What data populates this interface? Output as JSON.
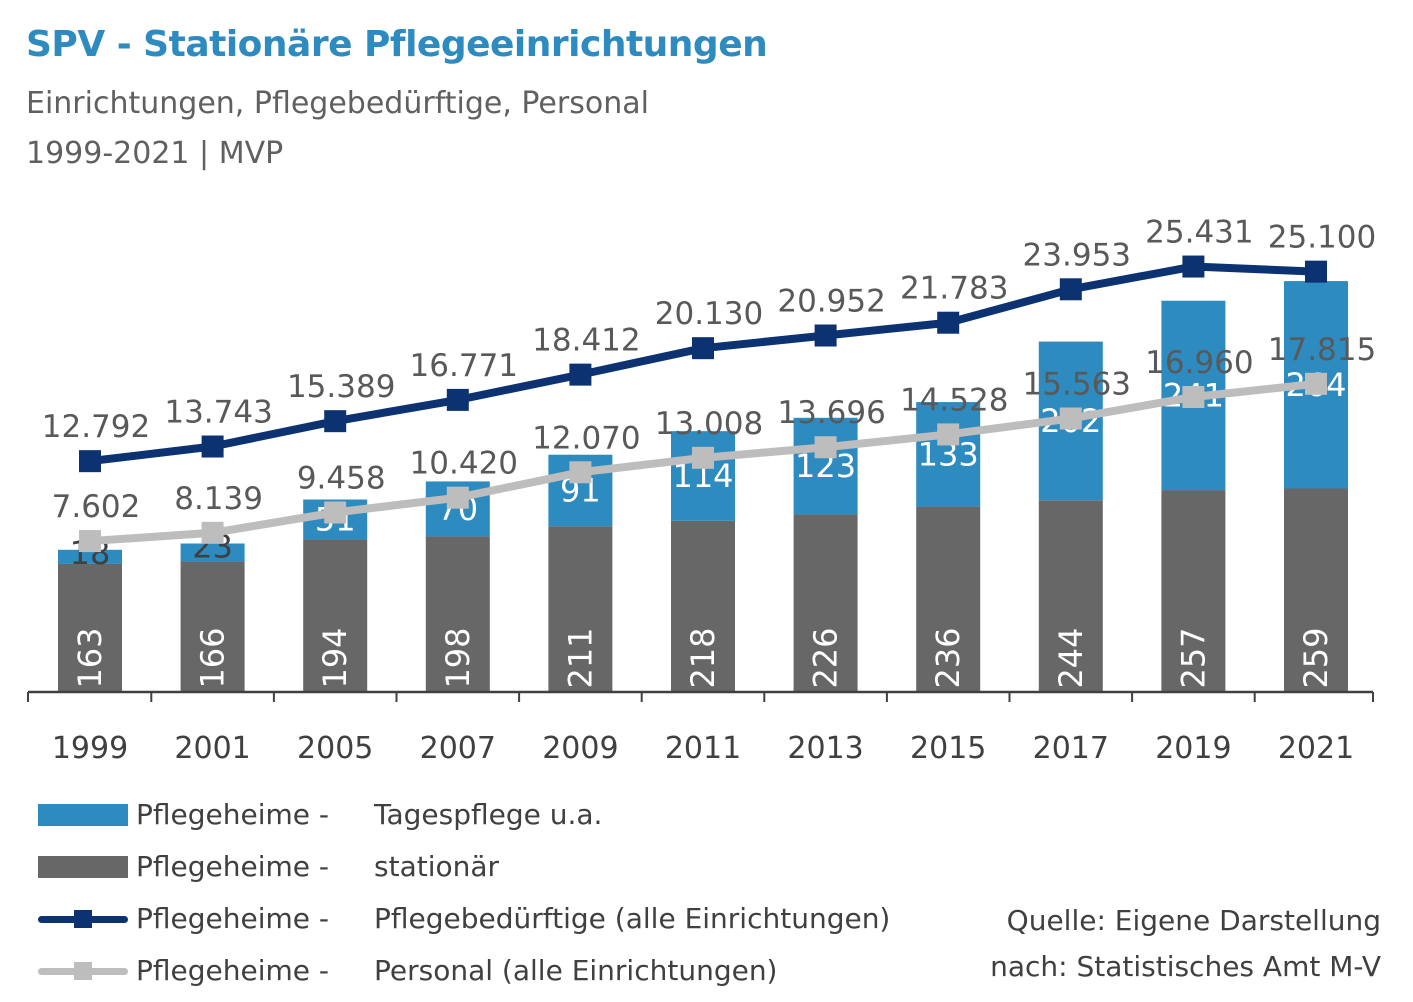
{
  "header": {
    "title": "SPV - Stationäre Pflegeeinrichtungen",
    "subtitle": "Einrichtungen, Pflegebedürftige, Personal",
    "subtitle2": "1999-2021 | MVP"
  },
  "legend": {
    "items": [
      {
        "prefix": "Pflegeheime -",
        "label": "Tagespflege u.a.",
        "kind": "box",
        "color": "#2e8bc0"
      },
      {
        "prefix": "Pflegeheime -",
        "label": "stationär",
        "kind": "box",
        "color": "#676767"
      },
      {
        "prefix": "Pflegeheime -",
        "label": "Pflegebedürftige (alle Einrichtungen)",
        "kind": "line",
        "color": "#0d3272"
      },
      {
        "prefix": "Pflegeheime -",
        "label": "Personal (alle Einrichtungen)",
        "kind": "line",
        "color": "#bdbdbd"
      }
    ]
  },
  "source": {
    "line1": "Quelle: Eigene Darstellung",
    "line2": "nach: Statistisches Amt M-V"
  },
  "chart_data": {
    "type": "bar",
    "stacked": true,
    "categories": [
      "1999",
      "2001",
      "2005",
      "2007",
      "2009",
      "2011",
      "2013",
      "2015",
      "2017",
      "2019",
      "2021"
    ],
    "series": [
      {
        "name": "Pflegeheime - stationär",
        "kind": "bar",
        "color": "#676767",
        "values": [
          163,
          166,
          194,
          198,
          211,
          218,
          226,
          236,
          244,
          257,
          259
        ],
        "labels": [
          "163",
          "166",
          "194",
          "198",
          "211",
          "218",
          "226",
          "236",
          "244",
          "257",
          "259"
        ]
      },
      {
        "name": "Pflegeheime - Tagespflege u.a.",
        "kind": "bar",
        "color": "#2e8bc0",
        "values": [
          18,
          23,
          51,
          70,
          91,
          114,
          123,
          133,
          202,
          241,
          264
        ],
        "labels": [
          "18",
          "23",
          "51",
          "70",
          "91",
          "114",
          "123",
          "133",
          "202",
          "241",
          "264"
        ]
      },
      {
        "name": "Pflegeheime - Pflegebedürftige (alle Einrichtungen)",
        "kind": "line",
        "color": "#0d3272",
        "values": [
          12792,
          13743,
          15389,
          16771,
          18412,
          20130,
          20952,
          21783,
          23953,
          25431,
          25100
        ],
        "labels": [
          "12.792",
          "13.743",
          "15.389",
          "16.771",
          "18.412",
          "20.130",
          "20.952",
          "21.783",
          "23.953",
          "25.431",
          "25.100"
        ]
      },
      {
        "name": "Pflegeheime - Personal (alle Einrichtungen)",
        "kind": "line",
        "color": "#bdbdbd",
        "values": [
          7602,
          8139,
          9458,
          10420,
          12070,
          13008,
          13696,
          14528,
          15563,
          16960,
          17815
        ],
        "labels": [
          "7.602",
          "8.139",
          "9.458",
          "10.420",
          "12.070",
          "13.008",
          "13.696",
          "14.528",
          "15.563",
          "16.960",
          "17.815"
        ]
      }
    ],
    "bar_axis": {
      "ylim": [
        0,
        560
      ]
    },
    "line_axis": {
      "ylim": [
        -2200,
        33000
      ]
    },
    "grid": false,
    "legend_position": "bottom-left"
  }
}
